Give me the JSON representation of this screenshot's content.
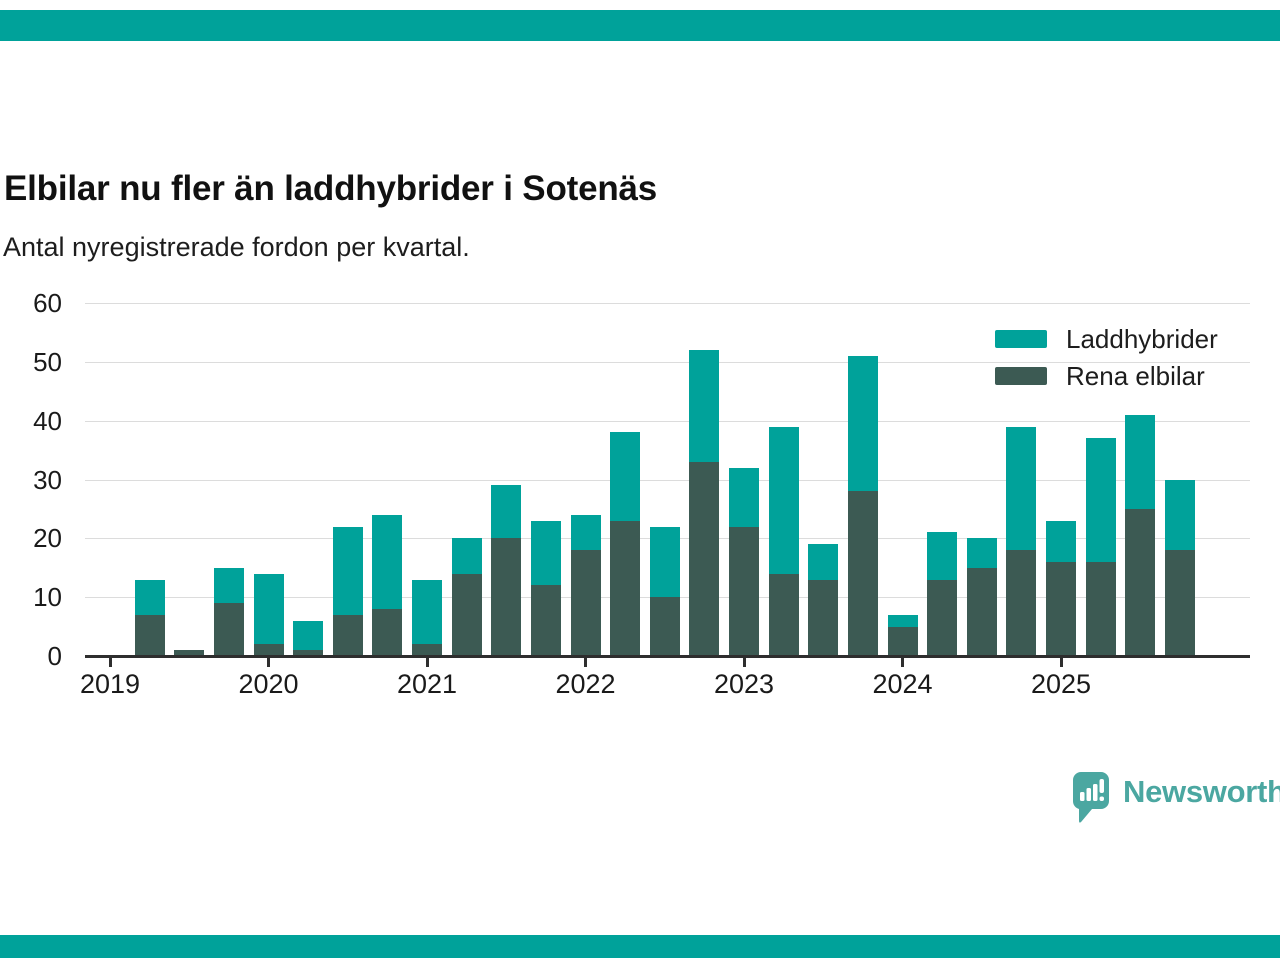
{
  "colors": {
    "accent_teal": "#00a29a",
    "dark_teal": "#3c5a53",
    "logo_teal": "#4ba7a1",
    "gridline": "#dcdcdc",
    "axis": "#2e2e2e"
  },
  "chart_data": {
    "type": "bar",
    "stacked": true,
    "title": "Elbilar nu fler än laddhybrider i Sotenäs",
    "subtitle": "Antal nyregistrerade fordon per kvartal.",
    "xlabel": "",
    "ylabel": "",
    "ylim": [
      0,
      60
    ],
    "yticks": [
      0,
      10,
      20,
      30,
      40,
      50,
      60
    ],
    "grid": true,
    "legend_position": "top-right",
    "categories": [
      "2019 Q1",
      "2019 Q2",
      "2019 Q3",
      "2019 Q4",
      "2020 Q1",
      "2020 Q2",
      "2020 Q3",
      "2020 Q4",
      "2021 Q1",
      "2021 Q2",
      "2021 Q3",
      "2021 Q4",
      "2022 Q1",
      "2022 Q2",
      "2022 Q3",
      "2022 Q4",
      "2023 Q1",
      "2023 Q2",
      "2023 Q3",
      "2023 Q4",
      "2024 Q1",
      "2024 Q2",
      "2024 Q3",
      "2024 Q4",
      "2025 Q1",
      "2025 Q2",
      "2025 Q3",
      "2025 Q4"
    ],
    "xticks": [
      "2019",
      "2020",
      "2021",
      "2022",
      "2023",
      "2024",
      "2025"
    ],
    "series": [
      {
        "name": "Laddhybrider",
        "color": "#00a29a",
        "stack": "top",
        "values": [
          0,
          6,
          0,
          6,
          12,
          5,
          15,
          16,
          11,
          6,
          9,
          11,
          6,
          15,
          12,
          19,
          10,
          25,
          6,
          23,
          2,
          8,
          5,
          21,
          7,
          21,
          16,
          12
        ]
      },
      {
        "name": "Rena elbilar",
        "color": "#3c5a53",
        "stack": "bottom",
        "values": [
          0,
          7,
          1,
          9,
          2,
          1,
          7,
          8,
          2,
          14,
          20,
          12,
          18,
          23,
          10,
          33,
          22,
          14,
          13,
          28,
          5,
          13,
          15,
          18,
          16,
          16,
          25,
          18
        ]
      }
    ],
    "totals": [
      0,
      13,
      1,
      15,
      14,
      6,
      22,
      24,
      13,
      20,
      29,
      23,
      24,
      38,
      22,
      52,
      32,
      39,
      19,
      51,
      7,
      21,
      20,
      39,
      23,
      37,
      41,
      30
    ]
  },
  "footer": {
    "logo_text": "Newsworthy"
  }
}
